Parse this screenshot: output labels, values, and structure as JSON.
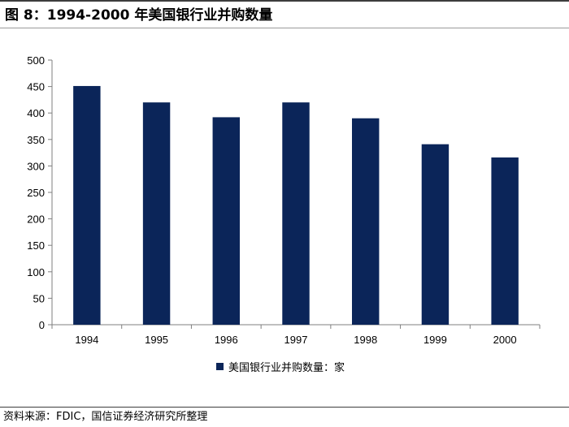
{
  "figure": {
    "title": "图 8：1994-2000 年美国银行业并购数量",
    "source": "资料来源：FDIC，国信证券经济研究所整理"
  },
  "chart_data": {
    "type": "bar",
    "title": "",
    "xlabel": "",
    "ylabel": "",
    "categories": [
      "1994",
      "1995",
      "1996",
      "1997",
      "1998",
      "1999",
      "2000"
    ],
    "series": [
      {
        "name": "美国银行业并购数量：家",
        "values": [
          451,
          420,
          392,
          420,
          390,
          341,
          316
        ],
        "color": "#0b2559"
      }
    ],
    "ylim": [
      0,
      500
    ],
    "yticks": [
      0,
      50,
      100,
      150,
      200,
      250,
      300,
      350,
      400,
      450,
      500
    ],
    "grid": false,
    "legend_position": "bottom"
  }
}
